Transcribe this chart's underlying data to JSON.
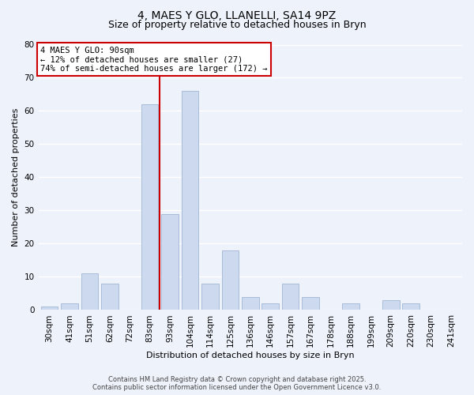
{
  "title1": "4, MAES Y GLO, LLANELLI, SA14 9PZ",
  "title2": "Size of property relative to detached houses in Bryn",
  "xlabel": "Distribution of detached houses by size in Bryn",
  "ylabel": "Number of detached properties",
  "bins": [
    "30sqm",
    "41sqm",
    "51sqm",
    "62sqm",
    "72sqm",
    "83sqm",
    "93sqm",
    "104sqm",
    "114sqm",
    "125sqm",
    "136sqm",
    "146sqm",
    "157sqm",
    "167sqm",
    "178sqm",
    "188sqm",
    "199sqm",
    "209sqm",
    "220sqm",
    "230sqm",
    "241sqm"
  ],
  "values": [
    1,
    2,
    11,
    8,
    0,
    62,
    29,
    66,
    8,
    18,
    4,
    2,
    8,
    4,
    0,
    2,
    0,
    3,
    2,
    0,
    0
  ],
  "bar_color": "#ccd9ee",
  "bar_edge_color": "#a8bcd8",
  "vline_color": "#cc0000",
  "vline_pos": 5.5,
  "annotation_title": "4 MAES Y GLO: 90sqm",
  "annotation_line1": "← 12% of detached houses are smaller (27)",
  "annotation_line2": "74% of semi-detached houses are larger (172) →",
  "annotation_box_facecolor": "#ffffff",
  "annotation_box_edgecolor": "#cc0000",
  "ylim": [
    0,
    80
  ],
  "yticks": [
    0,
    10,
    20,
    30,
    40,
    50,
    60,
    70,
    80
  ],
  "footer1": "Contains HM Land Registry data © Crown copyright and database right 2025.",
  "footer2": "Contains public sector information licensed under the Open Government Licence v3.0.",
  "bg_color": "#eef2fb",
  "grid_color": "#ffffff",
  "title_fontsize": 10,
  "subtitle_fontsize": 9,
  "axis_label_fontsize": 8,
  "tick_fontsize": 7.5,
  "annotation_fontsize": 7.5,
  "footer_fontsize": 6
}
